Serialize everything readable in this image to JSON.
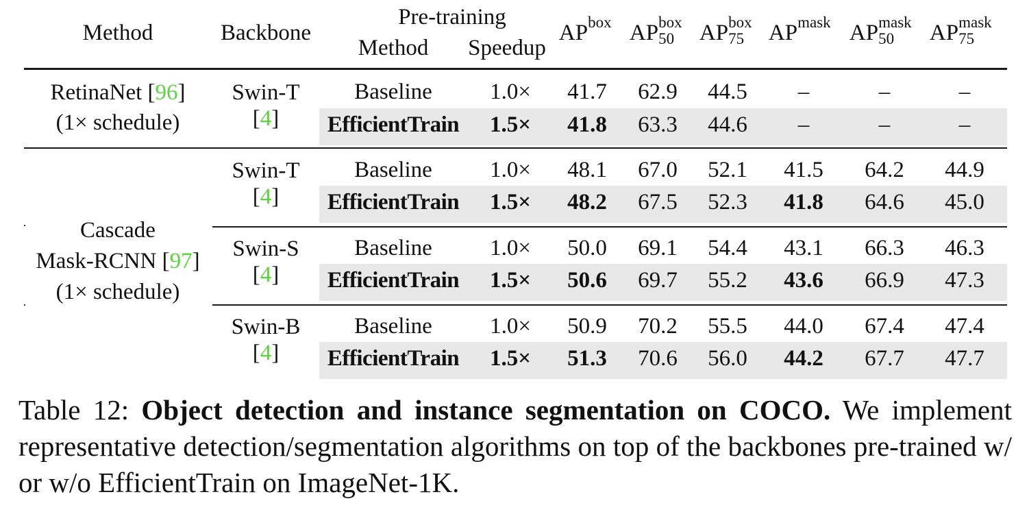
{
  "header": {
    "method": "Method",
    "backbone": "Backbone",
    "pretraining_top": "Pre-training",
    "pretraining_method": "Method",
    "pretraining_speedup": "Speedup",
    "ap_cols": [
      {
        "base": "AP",
        "sup": "box",
        "sub": ""
      },
      {
        "base": "AP",
        "sup": "box",
        "sub": "50"
      },
      {
        "base": "AP",
        "sup": "box",
        "sub": "75"
      },
      {
        "base": "AP",
        "sup": "mask",
        "sub": ""
      },
      {
        "base": "AP",
        "sup": "mask",
        "sub": "50"
      },
      {
        "base": "AP",
        "sup": "mask",
        "sub": "75"
      }
    ]
  },
  "groups": {
    "retinanet": {
      "line1": "RetinaNet [",
      "ref": "96",
      "line1_end": "]",
      "line2": "(1× schedule)"
    },
    "cascade": {
      "line1": "Cascade",
      "line2": "Mask-RCNN [",
      "ref": "97",
      "line2_end": "]",
      "line3": "(1× schedule)"
    }
  },
  "backbones": [
    {
      "name": "Swin-T",
      "ref_open": "[",
      "ref": "4",
      "ref_close": "]"
    },
    {
      "name": "Swin-T",
      "ref_open": "[",
      "ref": "4",
      "ref_close": "]"
    },
    {
      "name": "Swin-S",
      "ref_open": "[",
      "ref": "4",
      "ref_close": "]"
    },
    {
      "name": "Swin-B",
      "ref_open": "[",
      "ref": "4",
      "ref_close": "]"
    }
  ],
  "rows": [
    {
      "method": "Baseline",
      "speedup": "1.0×",
      "vals": [
        "41.7",
        "62.9",
        "44.5",
        "–",
        "–",
        "–"
      ],
      "bold_cols": [],
      "shaded": false
    },
    {
      "method": "EfficientTrain",
      "speedup": "1.5×",
      "vals": [
        "41.8",
        "63.3",
        "44.6",
        "–",
        "–",
        "–"
      ],
      "bold_cols": [
        0
      ],
      "shaded": true
    },
    {
      "method": "Baseline",
      "speedup": "1.0×",
      "vals": [
        "48.1",
        "67.0",
        "52.1",
        "41.5",
        "64.2",
        "44.9"
      ],
      "bold_cols": [],
      "shaded": false
    },
    {
      "method": "EfficientTrain",
      "speedup": "1.5×",
      "vals": [
        "48.2",
        "67.5",
        "52.3",
        "41.8",
        "64.6",
        "45.0"
      ],
      "bold_cols": [
        0,
        3
      ],
      "shaded": true
    },
    {
      "method": "Baseline",
      "speedup": "1.0×",
      "vals": [
        "50.0",
        "69.1",
        "54.4",
        "43.1",
        "66.3",
        "46.3"
      ],
      "bold_cols": [],
      "shaded": false
    },
    {
      "method": "EfficientTrain",
      "speedup": "1.5×",
      "vals": [
        "50.6",
        "69.7",
        "55.2",
        "43.6",
        "66.9",
        "47.3"
      ],
      "bold_cols": [
        0,
        3
      ],
      "shaded": true
    },
    {
      "method": "Baseline",
      "speedup": "1.0×",
      "vals": [
        "50.9",
        "70.2",
        "55.5",
        "44.0",
        "67.4",
        "47.4"
      ],
      "bold_cols": [],
      "shaded": false
    },
    {
      "method": "EfficientTrain",
      "speedup": "1.5×",
      "vals": [
        "51.3",
        "70.6",
        "56.0",
        "44.2",
        "67.7",
        "47.7"
      ],
      "bold_cols": [
        0,
        3
      ],
      "shaded": true
    }
  ],
  "caption": {
    "label": "Table 12: ",
    "title": "Object detection and instance segmentation on COCO.",
    "body": " We implement representative detection/segmentation algorithms on top of the backbones pre-trained w/ or w/o EfficientTrain on ImageNet-1K."
  },
  "colors": {
    "shade": "#e8e8e8",
    "ref_link": "#5ad43a",
    "rule": "#1a1a1a"
  }
}
